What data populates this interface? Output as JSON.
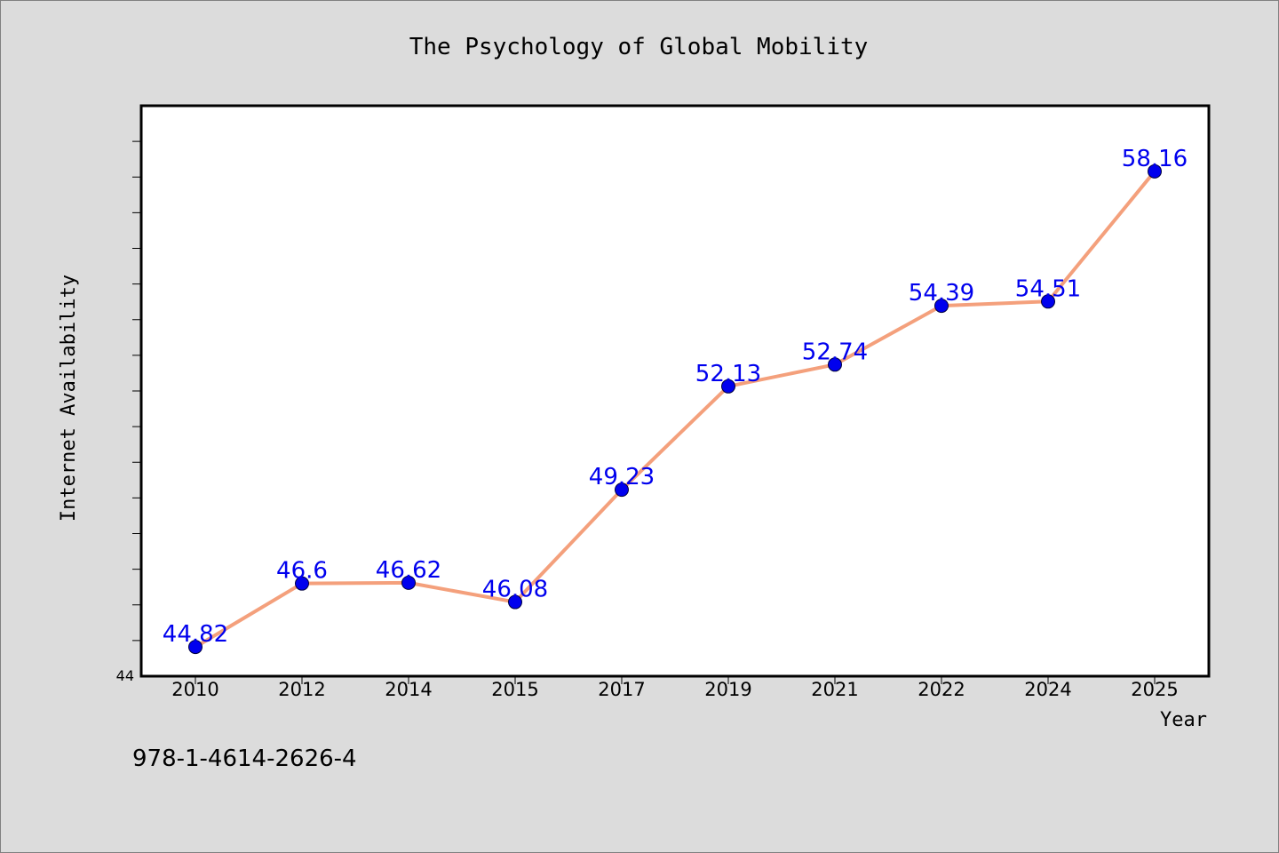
{
  "chart_data": {
    "type": "line",
    "title": "The Psychology of Global Mobility",
    "xlabel": "Year",
    "ylabel": "Internet Availability",
    "categories": [
      "2010",
      "2012",
      "2014",
      "2015",
      "2017",
      "2019",
      "2021",
      "2022",
      "2024",
      "2025"
    ],
    "series": [
      {
        "values": [
          44.82,
          46.6,
          46.62,
          46.08,
          49.23,
          52.13,
          52.74,
          54.39,
          54.51,
          58.16
        ],
        "line_color": "#f4a07c",
        "marker_color": "#0000ee"
      }
    ],
    "data_labels": [
      "44.82",
      "46.6",
      "46.62",
      "46.08",
      "49.23",
      "52.13",
      "52.74",
      "54.39",
      "54.51",
      "58.16"
    ],
    "ylim": [
      44,
      60
    ],
    "y_tick_labels": [
      "44"
    ],
    "grid": false,
    "legend": "none",
    "label_color": "#0000ee"
  },
  "footer": {
    "isbn": "978-1-4614-2626-4"
  }
}
